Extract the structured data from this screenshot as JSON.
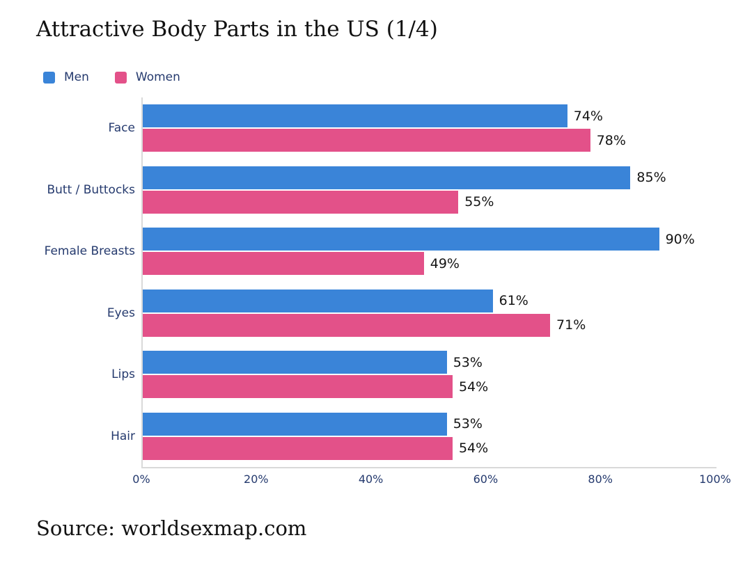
{
  "chart_data": {
    "type": "bar",
    "orientation": "horizontal",
    "title": "Attractive Body Parts in the US (1/4)",
    "categories": [
      "Face",
      "Butt / Buttocks",
      "Female Breasts",
      "Eyes",
      "Lips",
      "Hair"
    ],
    "series": [
      {
        "name": "Men",
        "color": "#3a84d8",
        "values": [
          74,
          85,
          90,
          61,
          53,
          53
        ]
      },
      {
        "name": "Women",
        "color": "#e35189",
        "values": [
          78,
          55,
          49,
          71,
          54,
          54
        ]
      }
    ],
    "value_suffix": "%",
    "xlim": [
      0,
      100
    ],
    "x_ticks": [
      "0%",
      "20%",
      "40%",
      "60%",
      "80%",
      "100%"
    ],
    "legend_position": "top-left",
    "grid": false,
    "bar_value_labels": true
  },
  "source": {
    "label": "Source: worldsexmap.com"
  },
  "colors": {
    "category_text": "#253a6e",
    "tick_text": "#253a6e",
    "value_text": "#141414",
    "title_text": "#111111",
    "axis_line": "#d9d9d9",
    "background": "#ffffff"
  }
}
